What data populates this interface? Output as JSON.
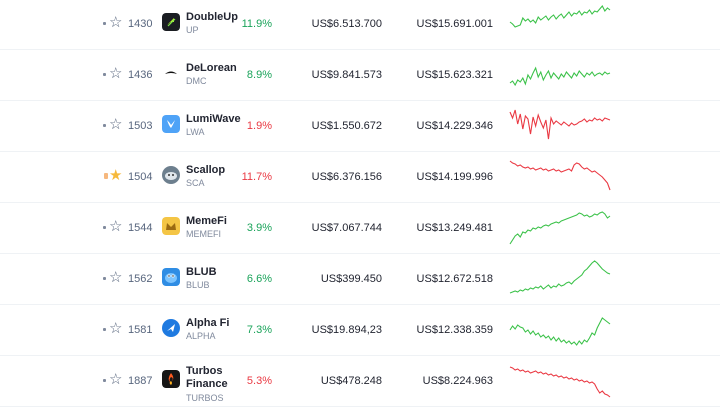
{
  "colors": {
    "positive": "#16c784",
    "negative": "#ea3943",
    "star_filled": "#f6b93b"
  },
  "rows": [
    {
      "rank": "1430",
      "name": "DoubleUp",
      "symbol": "UP",
      "change": "11.9%",
      "trend": "positive",
      "price": "US$6.513.700",
      "market_cap": "US$15.691.001",
      "starred": false,
      "logo_icon": "doubleup-logo-icon",
      "sparkline": [
        20,
        22,
        25,
        24,
        23,
        16,
        19,
        17,
        20,
        18,
        21,
        15,
        18,
        16,
        14,
        18,
        15,
        13,
        17,
        14,
        12,
        16,
        13,
        10,
        14,
        11,
        12,
        9,
        13,
        10,
        11,
        8,
        12,
        9,
        10,
        7,
        4,
        9,
        6,
        8
      ]
    },
    {
      "rank": "1436",
      "name": "DeLorean",
      "symbol": "DMC",
      "change": "8.9%",
      "trend": "positive",
      "price": "US$9.841.573",
      "market_cap": "US$15.623.321",
      "starred": false,
      "logo_icon": "delorean-logo-icon",
      "sparkline": [
        30,
        28,
        32,
        27,
        29,
        25,
        31,
        22,
        26,
        20,
        15,
        24,
        19,
        27,
        22,
        18,
        25,
        20,
        23,
        26,
        21,
        24,
        19,
        22,
        25,
        20,
        23,
        18,
        21,
        24,
        20,
        22,
        19,
        23,
        21,
        20,
        22,
        19,
        21,
        20
      ]
    },
    {
      "rank": "1503",
      "name": "LumiWave",
      "symbol": "LWA",
      "change": "1.9%",
      "trend": "negative",
      "price": "US$1.550.672",
      "market_cap": "US$14.229.346",
      "starred": false,
      "logo_icon": "lumiwave-logo-icon",
      "sparkline": [
        8,
        14,
        6,
        20,
        10,
        25,
        12,
        15,
        30,
        13,
        22,
        11,
        18,
        24,
        16,
        35,
        14,
        20,
        17,
        19,
        21,
        18,
        20,
        22,
        19,
        21,
        20,
        18,
        17,
        15,
        18,
        16,
        17,
        14,
        16,
        15,
        17,
        14,
        15,
        16
      ]
    },
    {
      "rank": "1504",
      "name": "Scallop",
      "symbol": "SCA",
      "change": "11.7%",
      "trend": "negative",
      "price": "US$6.376.156",
      "market_cap": "US$14.199.996",
      "starred": true,
      "logo_icon": "scallop-logo-icon",
      "sparkline": [
        6,
        8,
        9,
        11,
        10,
        12,
        13,
        12,
        14,
        13,
        15,
        14,
        13,
        15,
        14,
        16,
        15,
        14,
        16,
        15,
        17,
        16,
        15,
        14,
        16,
        10,
        8,
        9,
        12,
        14,
        13,
        15,
        17,
        16,
        18,
        20,
        22,
        25,
        28,
        35
      ]
    },
    {
      "rank": "1544",
      "name": "MemeFi",
      "symbol": "MEMEFI",
      "change": "3.9%",
      "trend": "positive",
      "price": "US$7.067.744",
      "market_cap": "US$13.249.481",
      "starred": false,
      "logo_icon": "memefi-logo-icon",
      "sparkline": [
        38,
        34,
        30,
        28,
        31,
        26,
        27,
        24,
        25,
        22,
        23,
        21,
        22,
        20,
        19,
        20,
        18,
        17,
        16,
        17,
        15,
        14,
        13,
        12,
        11,
        10,
        9,
        7,
        8,
        10,
        9,
        11,
        10,
        8,
        9,
        7,
        6,
        8,
        12,
        10
      ]
    },
    {
      "rank": "1562",
      "name": "BLUB",
      "symbol": "BLUB",
      "change": "6.6%",
      "trend": "positive",
      "price": "US$399.450",
      "market_cap": "US$12.672.518",
      "starred": false,
      "logo_icon": "blub-logo-icon",
      "sparkline": [
        36,
        35,
        34,
        35,
        33,
        34,
        32,
        33,
        31,
        32,
        30,
        31,
        29,
        32,
        30,
        28,
        31,
        29,
        30,
        27,
        29,
        28,
        26,
        25,
        27,
        24,
        22,
        20,
        18,
        14,
        12,
        9,
        6,
        4,
        6,
        9,
        12,
        14,
        16,
        17
      ]
    },
    {
      "rank": "1581",
      "name": "Alpha Fi",
      "symbol": "ALPHA",
      "change": "7.3%",
      "trend": "positive",
      "price": "US$19.894,23",
      "market_cap": "US$12.338.359",
      "starred": false,
      "logo_icon": "alphafi-logo-icon",
      "sparkline": [
        22,
        18,
        21,
        17,
        19,
        20,
        24,
        22,
        26,
        23,
        27,
        25,
        29,
        27,
        30,
        28,
        32,
        29,
        33,
        30,
        34,
        32,
        35,
        33,
        36,
        34,
        37,
        33,
        36,
        32,
        34,
        30,
        25,
        27,
        20,
        15,
        10,
        12,
        14,
        16
      ]
    },
    {
      "rank": "1887",
      "name": "Turbos Finance",
      "symbol": "TURBOS",
      "change": "5.3%",
      "trend": "negative",
      "price": "US$478.248",
      "market_cap": "US$8.224.963",
      "starred": false,
      "logo_icon": "turbos-logo-icon",
      "sparkline": [
        8,
        9,
        11,
        10,
        12,
        11,
        13,
        12,
        14,
        13,
        12,
        14,
        13,
        15,
        14,
        16,
        15,
        17,
        16,
        18,
        17,
        19,
        18,
        20,
        19,
        21,
        20,
        22,
        21,
        23,
        22,
        24,
        23,
        25,
        30,
        34,
        32,
        35,
        36,
        38
      ]
    }
  ]
}
